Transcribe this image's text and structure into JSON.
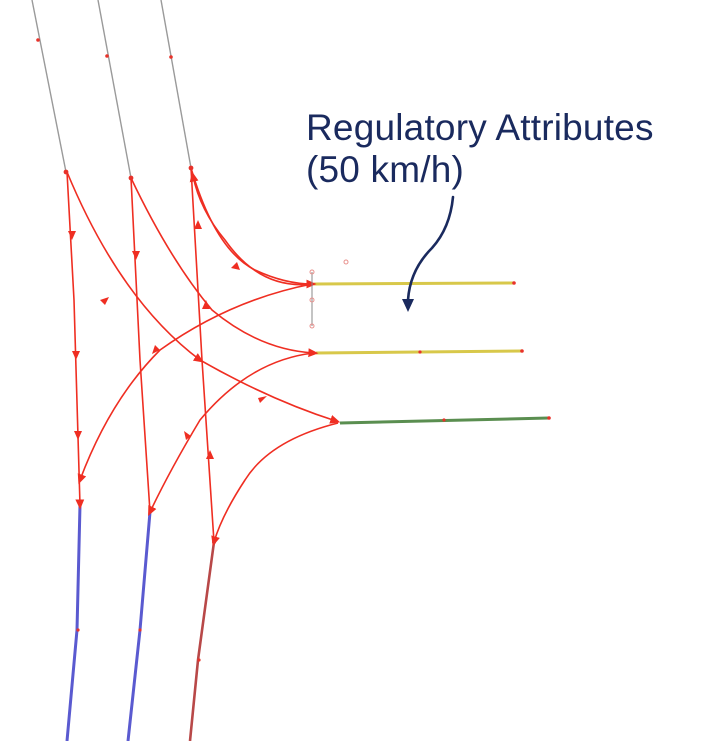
{
  "annotation": {
    "line1": "Regulatory Attributes",
    "line2": "(50 km/h)"
  },
  "colors": {
    "lane_connector": "#ef2e22",
    "incoming_road": "#9a9a9a",
    "outgoing_road_left": "#5a5ad0",
    "outgoing_road_right": "#b84848",
    "regulated_lanes": "#d8c84a",
    "right_lane": "#5a8e50",
    "annotation_text": "#1a2a5e"
  }
}
